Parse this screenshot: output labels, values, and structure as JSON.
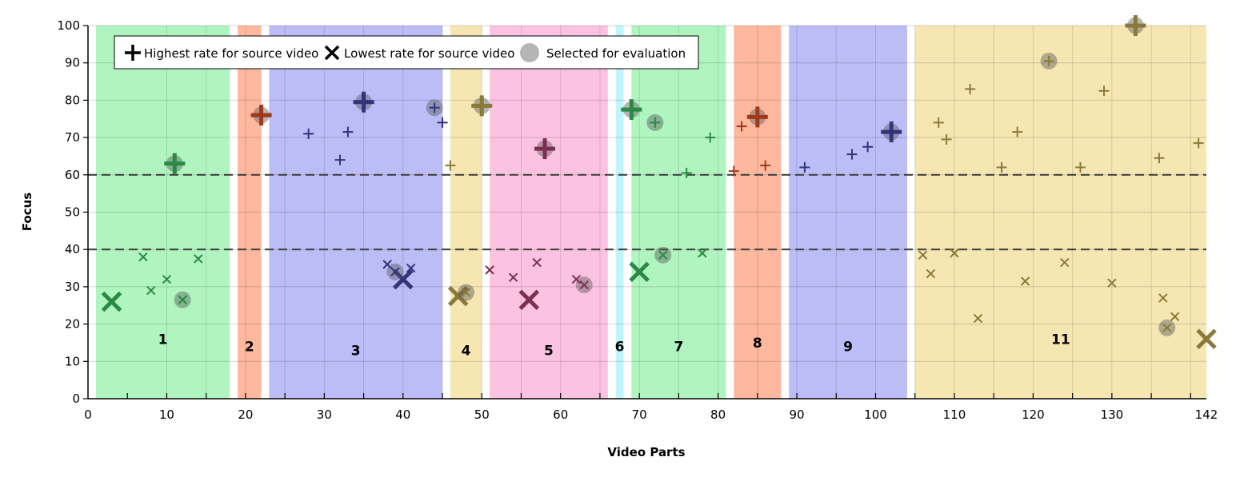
{
  "chart_data": {
    "type": "scatter",
    "xlabel": "Video Parts",
    "ylabel": "Focus",
    "xlim": [
      0,
      142
    ],
    "ylim": [
      0,
      100
    ],
    "xticks": [
      0,
      10,
      20,
      30,
      40,
      50,
      60,
      70,
      80,
      90,
      100,
      110,
      120,
      130,
      142
    ],
    "yticks": [
      0,
      10,
      20,
      30,
      40,
      50,
      60,
      70,
      80,
      90,
      100
    ],
    "grid": true,
    "threshold_lines": [
      60,
      40
    ],
    "legend": {
      "position": "top-left",
      "entries": [
        {
          "marker": "plus",
          "label": "Highest rate for source video"
        },
        {
          "marker": "x",
          "label": "Lowest rate for source video"
        },
        {
          "marker": "circle",
          "label": "Selected for evaluation"
        }
      ]
    },
    "bands": [
      {
        "label": "1",
        "x0": 1,
        "x1": 18,
        "color": "#b0f5c0",
        "marker_color": "#2a8a45",
        "label_y": 16
      },
      {
        "label": "2",
        "x0": 19,
        "x1": 22,
        "color": "#fdb89e",
        "marker_color": "#a03a1c",
        "label_y": 14
      },
      {
        "label": "3",
        "x0": 23,
        "x1": 45,
        "color": "#bcbcf7",
        "marker_color": "#33337a",
        "label_y": 13
      },
      {
        "label": "4",
        "x0": 46,
        "x1": 50,
        "color": "#f6e6b2",
        "marker_color": "#8a7a3a",
        "label_y": 13
      },
      {
        "label": "5",
        "x0": 51,
        "x1": 66,
        "color": "#fcc2e2",
        "marker_color": "#7a3050",
        "label_y": 13
      },
      {
        "label": "6",
        "x0": 67,
        "x1": 68,
        "color": "#bff5fb",
        "marker_color": "#2a8a95",
        "label_y": 14
      },
      {
        "label": "7",
        "x0": 69,
        "x1": 81,
        "color": "#b0f5c0",
        "marker_color": "#2a8a45",
        "label_y": 14
      },
      {
        "label": "8",
        "x0": 82,
        "x1": 88,
        "color": "#fdb89e",
        "marker_color": "#a03a1c",
        "label_y": 15
      },
      {
        "label": "9",
        "x0": 89,
        "x1": 104,
        "color": "#bcbcf7",
        "marker_color": "#33337a",
        "label_y": 14
      },
      {
        "label": "11",
        "x0": 105,
        "x1": 142,
        "color": "#f6e6b2",
        "marker_color": "#8a7a3a",
        "label_y": 16
      }
    ],
    "series": [
      {
        "band": "1",
        "points": [
          {
            "x": 11,
            "y": 63,
            "m": "plus",
            "big": true,
            "sel": true
          },
          {
            "x": 3,
            "y": 26,
            "m": "x",
            "big": true
          },
          {
            "x": 12,
            "y": 26.5,
            "m": "x",
            "sel": true
          },
          {
            "x": 7,
            "y": 38,
            "m": "x"
          },
          {
            "x": 8,
            "y": 29,
            "m": "x"
          },
          {
            "x": 10,
            "y": 32,
            "m": "x"
          },
          {
            "x": 14,
            "y": 37.5,
            "m": "x"
          }
        ]
      },
      {
        "band": "2",
        "points": [
          {
            "x": 22,
            "y": 76,
            "m": "plus",
            "big": true,
            "sel": true
          }
        ]
      },
      {
        "band": "3",
        "points": [
          {
            "x": 35,
            "y": 79.5,
            "m": "plus",
            "big": true,
            "sel": true
          },
          {
            "x": 44,
            "y": 78,
            "m": "plus",
            "sel": true
          },
          {
            "x": 45,
            "y": 74,
            "m": "plus"
          },
          {
            "x": 28,
            "y": 71,
            "m": "plus"
          },
          {
            "x": 33,
            "y": 71.5,
            "m": "plus"
          },
          {
            "x": 32,
            "y": 64,
            "m": "plus"
          },
          {
            "x": 40,
            "y": 32,
            "m": "x",
            "big": true
          },
          {
            "x": 39,
            "y": 34,
            "m": "x",
            "sel": true
          },
          {
            "x": 38,
            "y": 36,
            "m": "x"
          },
          {
            "x": 41,
            "y": 35,
            "m": "x"
          }
        ]
      },
      {
        "band": "4",
        "points": [
          {
            "x": 50,
            "y": 78.5,
            "m": "plus",
            "big": true,
            "sel": true
          },
          {
            "x": 46,
            "y": 62.5,
            "m": "plus"
          },
          {
            "x": 47,
            "y": 27.5,
            "m": "x",
            "big": true
          },
          {
            "x": 48,
            "y": 28.5,
            "m": "x",
            "sel": true
          }
        ]
      },
      {
        "band": "5",
        "points": [
          {
            "x": 58,
            "y": 67,
            "m": "plus",
            "big": true,
            "sel": true
          },
          {
            "x": 56,
            "y": 26.5,
            "m": "x",
            "big": true
          },
          {
            "x": 63,
            "y": 30.5,
            "m": "x",
            "sel": true
          },
          {
            "x": 51,
            "y": 34.5,
            "m": "x"
          },
          {
            "x": 54,
            "y": 32.5,
            "m": "x"
          },
          {
            "x": 57,
            "y": 36.5,
            "m": "x"
          },
          {
            "x": 62,
            "y": 32,
            "m": "x"
          }
        ]
      },
      {
        "band": "7",
        "points": [
          {
            "x": 69,
            "y": 77.5,
            "m": "plus",
            "big": true,
            "sel": true
          },
          {
            "x": 72,
            "y": 74,
            "m": "plus",
            "sel": true
          },
          {
            "x": 79,
            "y": 70,
            "m": "plus"
          },
          {
            "x": 76,
            "y": 60.5,
            "m": "plus"
          },
          {
            "x": 70,
            "y": 34,
            "m": "x",
            "big": true
          },
          {
            "x": 73,
            "y": 38.5,
            "m": "x",
            "sel": true
          },
          {
            "x": 78,
            "y": 39,
            "m": "x"
          }
        ]
      },
      {
        "band": "8",
        "points": [
          {
            "x": 85,
            "y": 75.5,
            "m": "plus",
            "big": true,
            "sel": true
          },
          {
            "x": 83,
            "y": 73,
            "m": "plus"
          },
          {
            "x": 82,
            "y": 61,
            "m": "plus"
          },
          {
            "x": 86,
            "y": 62.5,
            "m": "plus"
          }
        ]
      },
      {
        "band": "9",
        "points": [
          {
            "x": 102,
            "y": 71.5,
            "m": "plus",
            "big": true,
            "sel": true
          },
          {
            "x": 97,
            "y": 65.5,
            "m": "plus"
          },
          {
            "x": 99,
            "y": 67.5,
            "m": "plus"
          },
          {
            "x": 91,
            "y": 62,
            "m": "plus"
          }
        ]
      },
      {
        "band": "11",
        "points": [
          {
            "x": 133,
            "y": 100,
            "m": "plus",
            "big": true,
            "sel": true
          },
          {
            "x": 122,
            "y": 90.5,
            "m": "plus",
            "sel": true
          },
          {
            "x": 112,
            "y": 83,
            "m": "plus"
          },
          {
            "x": 129,
            "y": 82.5,
            "m": "plus"
          },
          {
            "x": 108,
            "y": 74,
            "m": "plus"
          },
          {
            "x": 109,
            "y": 69.5,
            "m": "plus"
          },
          {
            "x": 118,
            "y": 71.5,
            "m": "plus"
          },
          {
            "x": 116,
            "y": 62,
            "m": "plus"
          },
          {
            "x": 126,
            "y": 62,
            "m": "plus"
          },
          {
            "x": 136,
            "y": 64.5,
            "m": "plus"
          },
          {
            "x": 141,
            "y": 68.5,
            "m": "plus"
          },
          {
            "x": 142,
            "y": 16,
            "m": "x",
            "big": true
          },
          {
            "x": 137,
            "y": 19,
            "m": "x",
            "sel": true
          },
          {
            "x": 106,
            "y": 38.5,
            "m": "x"
          },
          {
            "x": 107,
            "y": 33.5,
            "m": "x"
          },
          {
            "x": 110,
            "y": 39,
            "m": "x"
          },
          {
            "x": 113,
            "y": 21.5,
            "m": "x"
          },
          {
            "x": 119,
            "y": 31.5,
            "m": "x"
          },
          {
            "x": 124,
            "y": 36.5,
            "m": "x"
          },
          {
            "x": 130,
            "y": 31,
            "m": "x"
          },
          {
            "x": 136.5,
            "y": 27,
            "m": "x"
          },
          {
            "x": 138,
            "y": 22,
            "m": "x"
          }
        ]
      }
    ]
  }
}
